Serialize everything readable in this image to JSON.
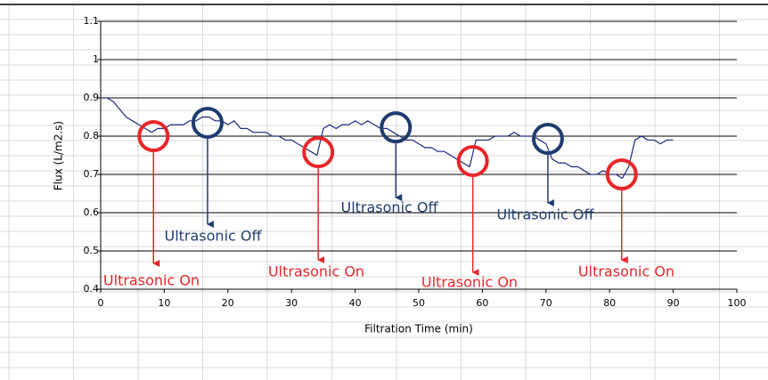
{
  "chart_data": {
    "type": "line",
    "x_label": "Filtration Time (min)",
    "y_label": "Flux (L/m2.s)",
    "xlim": [
      0,
      100
    ],
    "xticks": [
      0,
      10,
      20,
      30,
      40,
      50,
      60,
      70,
      80,
      90,
      100
    ],
    "ylim": [
      0.4,
      1.1
    ],
    "yticks": [
      0.4,
      0.5,
      0.6,
      0.7,
      0.8,
      0.9,
      1,
      1.1
    ],
    "grid": true,
    "series": [
      {
        "color": "#1f2a80",
        "x": [
          0,
          1,
          2,
          3,
          4,
          5,
          6,
          7,
          8,
          9,
          10,
          11,
          12,
          13,
          14,
          15,
          16,
          17,
          18,
          19,
          20,
          21,
          22,
          23,
          24,
          25,
          26,
          27,
          28,
          29,
          30,
          31,
          32,
          33,
          34,
          35,
          36,
          37,
          38,
          39,
          40,
          41,
          42,
          43,
          44,
          45,
          46,
          47,
          48,
          49,
          50,
          51,
          52,
          53,
          54,
          55,
          56,
          57,
          58,
          59,
          60,
          61,
          62,
          63,
          64,
          65,
          66,
          67,
          68,
          69,
          70,
          71,
          72,
          73,
          74,
          75,
          76,
          77,
          78,
          79,
          80,
          81,
          82,
          83,
          84,
          85,
          86,
          87,
          88,
          89,
          90
        ],
        "values": [
          0.9,
          0.9,
          0.89,
          0.87,
          0.85,
          0.84,
          0.83,
          0.82,
          0.81,
          0.82,
          0.82,
          0.83,
          0.83,
          0.83,
          0.84,
          0.84,
          0.85,
          0.85,
          0.84,
          0.84,
          0.83,
          0.84,
          0.82,
          0.82,
          0.81,
          0.81,
          0.81,
          0.8,
          0.8,
          0.79,
          0.79,
          0.78,
          0.77,
          0.76,
          0.75,
          0.82,
          0.83,
          0.82,
          0.83,
          0.83,
          0.84,
          0.83,
          0.84,
          0.83,
          0.82,
          0.82,
          0.81,
          0.8,
          0.79,
          0.79,
          0.78,
          0.77,
          0.77,
          0.76,
          0.76,
          0.75,
          0.74,
          0.73,
          0.72,
          0.79,
          0.79,
          0.79,
          0.8,
          0.8,
          0.8,
          0.81,
          0.8,
          0.8,
          0.8,
          0.79,
          0.78,
          0.74,
          0.73,
          0.73,
          0.72,
          0.72,
          0.71,
          0.7,
          0.7,
          0.71,
          0.7,
          0.7,
          0.69,
          0.72,
          0.79,
          0.8,
          0.79,
          0.79,
          0.78,
          0.79,
          0.79
        ]
      }
    ],
    "annotations": [
      {
        "text": "Ultrasonic On",
        "x": 8.3,
        "y": 0.8,
        "color": "#e8262a"
      },
      {
        "text": "Ultrasonic Off",
        "x": 16.8,
        "y": 0.835,
        "color": "#1f3c6e"
      },
      {
        "text": "Ultrasonic On",
        "x": 34.2,
        "y": 0.758,
        "color": "#e8262a"
      },
      {
        "text": "Ultrasonic Off",
        "x": 46.4,
        "y": 0.823,
        "color": "#1f3c6e"
      },
      {
        "text": "Ultrasonic On",
        "x": 58.5,
        "y": 0.735,
        "color": "#e8262a"
      },
      {
        "text": "Ultrasonic Off",
        "x": 70.3,
        "y": 0.793,
        "color": "#1f3c6e"
      },
      {
        "text": "Ultrasonic On",
        "x": 81.9,
        "y": 0.7,
        "color": "#e8262a"
      }
    ]
  }
}
